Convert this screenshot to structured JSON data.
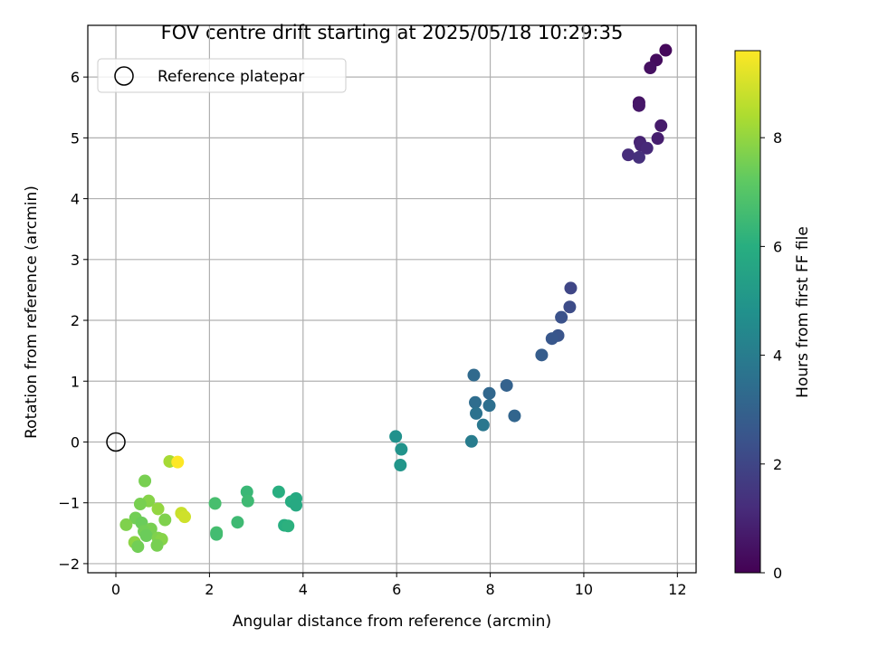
{
  "chart_data": {
    "type": "scatter",
    "title": "FOV centre drift starting at 2025/05/18 10:29:35",
    "xlabel": "Angular distance from reference (arcmin)",
    "ylabel": "Rotation from reference (arcmin)",
    "xlim": [
      -0.6,
      12.4
    ],
    "ylim": [
      -2.15,
      6.85
    ],
    "xticks": [
      0,
      2,
      4,
      6,
      8,
      10,
      12
    ],
    "yticks": [
      -2,
      -1,
      0,
      1,
      2,
      3,
      4,
      5,
      6
    ],
    "grid": true,
    "legend": {
      "placement": "top-left",
      "entries": [
        "Reference platepar"
      ]
    },
    "reference": {
      "name": "Reference platepar",
      "x": 0,
      "y": 0
    },
    "colorbar": {
      "label": "Hours from first FF file",
      "colormap": "viridis",
      "range": [
        0,
        9.6
      ],
      "ticks": [
        0,
        2,
        4,
        6,
        8
      ]
    },
    "points": [
      {
        "x": 11.75,
        "y": 6.44,
        "c": 0.2
      },
      {
        "x": 11.55,
        "y": 6.28,
        "c": 0.3
      },
      {
        "x": 11.42,
        "y": 6.15,
        "c": 0.4
      },
      {
        "x": 11.18,
        "y": 5.58,
        "c": 0.5
      },
      {
        "x": 11.18,
        "y": 5.53,
        "c": 0.6
      },
      {
        "x": 11.65,
        "y": 5.2,
        "c": 0.7
      },
      {
        "x": 11.58,
        "y": 4.99,
        "c": 0.8
      },
      {
        "x": 11.2,
        "y": 4.93,
        "c": 0.9
      },
      {
        "x": 11.22,
        "y": 4.88,
        "c": 1.0
      },
      {
        "x": 11.35,
        "y": 4.83,
        "c": 1.1
      },
      {
        "x": 10.95,
        "y": 4.72,
        "c": 1.2
      },
      {
        "x": 11.18,
        "y": 4.68,
        "c": 1.3
      },
      {
        "x": 9.72,
        "y": 2.53,
        "c": 2.0
      },
      {
        "x": 9.7,
        "y": 2.22,
        "c": 2.2
      },
      {
        "x": 9.52,
        "y": 2.05,
        "c": 2.4
      },
      {
        "x": 9.45,
        "y": 1.75,
        "c": 2.5
      },
      {
        "x": 9.32,
        "y": 1.7,
        "c": 2.6
      },
      {
        "x": 9.1,
        "y": 1.43,
        "c": 2.8
      },
      {
        "x": 7.65,
        "y": 1.1,
        "c": 3.3
      },
      {
        "x": 8.35,
        "y": 0.93,
        "c": 3.0
      },
      {
        "x": 7.98,
        "y": 0.8,
        "c": 3.2
      },
      {
        "x": 7.68,
        "y": 0.65,
        "c": 3.4
      },
      {
        "x": 7.98,
        "y": 0.6,
        "c": 3.5
      },
      {
        "x": 7.7,
        "y": 0.47,
        "c": 3.6
      },
      {
        "x": 8.52,
        "y": 0.43,
        "c": 3.1
      },
      {
        "x": 7.85,
        "y": 0.28,
        "c": 3.8
      },
      {
        "x": 7.6,
        "y": 0.01,
        "c": 4.0
      },
      {
        "x": 5.98,
        "y": 0.09,
        "c": 4.8
      },
      {
        "x": 6.1,
        "y": -0.12,
        "c": 4.9
      },
      {
        "x": 6.08,
        "y": -0.38,
        "c": 5.0
      },
      {
        "x": 3.48,
        "y": -0.82,
        "c": 6.0
      },
      {
        "x": 2.8,
        "y": -0.82,
        "c": 6.4
      },
      {
        "x": 2.82,
        "y": -0.97,
        "c": 6.5
      },
      {
        "x": 3.85,
        "y": -0.93,
        "c": 5.8
      },
      {
        "x": 3.75,
        "y": -0.98,
        "c": 5.9
      },
      {
        "x": 3.85,
        "y": -1.04,
        "c": 5.8
      },
      {
        "x": 2.12,
        "y": -1.01,
        "c": 6.7
      },
      {
        "x": 2.6,
        "y": -1.32,
        "c": 6.5
      },
      {
        "x": 3.6,
        "y": -1.37,
        "c": 6.0
      },
      {
        "x": 3.68,
        "y": -1.38,
        "c": 6.1
      },
      {
        "x": 2.15,
        "y": -1.49,
        "c": 6.7
      },
      {
        "x": 2.15,
        "y": -1.52,
        "c": 6.6
      },
      {
        "x": 1.15,
        "y": -0.32,
        "c": 8.3
      },
      {
        "x": 1.32,
        "y": -0.33,
        "c": 9.6
      },
      {
        "x": 0.62,
        "y": -0.64,
        "c": 7.6
      },
      {
        "x": 0.7,
        "y": -0.97,
        "c": 7.8
      },
      {
        "x": 0.52,
        "y": -1.02,
        "c": 7.6
      },
      {
        "x": 0.9,
        "y": -1.1,
        "c": 8.0
      },
      {
        "x": 1.4,
        "y": -1.17,
        "c": 8.8
      },
      {
        "x": 1.47,
        "y": -1.23,
        "c": 8.9
      },
      {
        "x": 0.42,
        "y": -1.25,
        "c": 7.5
      },
      {
        "x": 1.05,
        "y": -1.28,
        "c": 7.7
      },
      {
        "x": 0.22,
        "y": -1.36,
        "c": 7.7
      },
      {
        "x": 0.55,
        "y": -1.33,
        "c": 7.4
      },
      {
        "x": 0.75,
        "y": -1.43,
        "c": 7.6
      },
      {
        "x": 0.6,
        "y": -1.47,
        "c": 7.5
      },
      {
        "x": 0.65,
        "y": -1.54,
        "c": 7.4
      },
      {
        "x": 0.9,
        "y": -1.58,
        "c": 7.7
      },
      {
        "x": 0.98,
        "y": -1.6,
        "c": 7.8
      },
      {
        "x": 0.4,
        "y": -1.65,
        "c": 7.9
      },
      {
        "x": 0.88,
        "y": -1.7,
        "c": 7.6
      },
      {
        "x": 0.47,
        "y": -1.72,
        "c": 7.5
      }
    ]
  }
}
